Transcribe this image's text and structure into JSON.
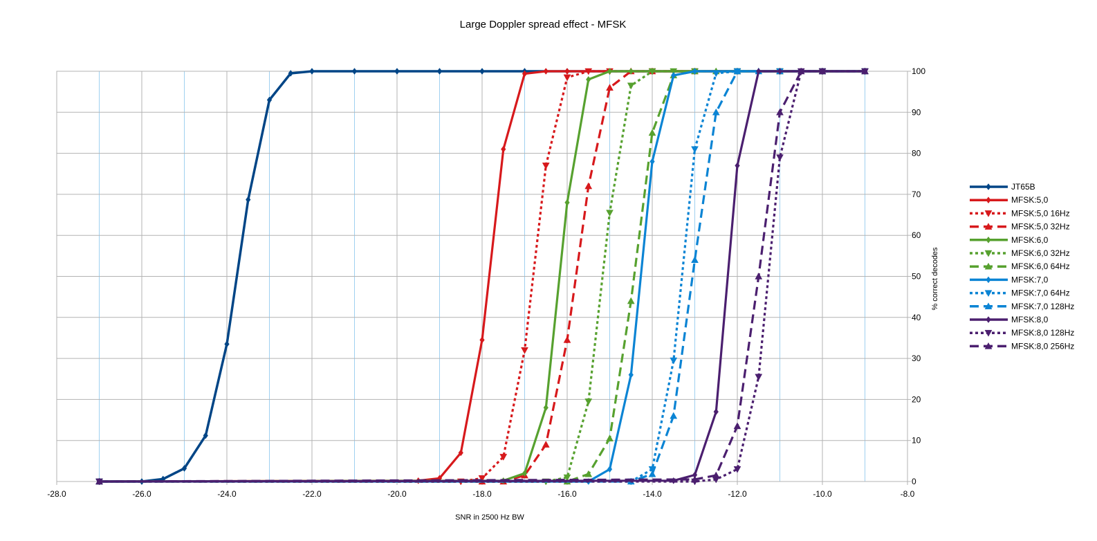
{
  "chart_data": {
    "type": "line",
    "title": "Large Doppler spread effect - MFSK",
    "xlabel": "SNR in 2500 Hz BW",
    "ylabel": "% correct decodes",
    "xlim": [
      -28,
      -8
    ],
    "ylim": [
      0,
      100
    ],
    "x_ticks": [
      "-28.0",
      "-26.0",
      "-24.0",
      "-22.0",
      "-20.0",
      "-18.0",
      "-16.0",
      "-14.0",
      "-12.0",
      "-10.0",
      "-8.0"
    ],
    "y_ticks": [
      "0",
      "10",
      "20",
      "30",
      "40",
      "50",
      "60",
      "70",
      "80",
      "90",
      "100"
    ],
    "y_axis_side": "right",
    "grid": true,
    "legend_position": "right",
    "series": [
      {
        "name": "JT65B",
        "color": "#004586",
        "dash": "solid",
        "marker": "diamond",
        "x": [
          -27,
          -26,
          -25.5,
          -25,
          -24.5,
          -24,
          -23.5,
          -23,
          -22.5,
          -22,
          -21,
          -20,
          -19,
          -18,
          -17,
          -16,
          -15,
          -14,
          -13,
          -12,
          -11,
          -10,
          -9
        ],
        "y": [
          0,
          0,
          0.6,
          3.2,
          11.2,
          33.5,
          68.7,
          93,
          99.5,
          100,
          100,
          100,
          100,
          100,
          100,
          100,
          100,
          100,
          100,
          100,
          100,
          100,
          100
        ]
      },
      {
        "name": "MFSK:5,0",
        "color": "#d7191c",
        "dash": "solid",
        "marker": "diamond",
        "x": [
          -27,
          -19.5,
          -19,
          -18.5,
          -18,
          -17.5,
          -17,
          -16.5,
          -16,
          -15,
          -14,
          -13,
          -12,
          -11,
          -10,
          -9
        ],
        "y": [
          0,
          0.2,
          0.8,
          7,
          34.5,
          81,
          99.4,
          100,
          100,
          100,
          100,
          100,
          100,
          100,
          100,
          100
        ]
      },
      {
        "name": "MFSK:5,0 16Hz",
        "color": "#d7191c",
        "dash": "dot",
        "marker": "tri-down",
        "x": [
          -27,
          -18.5,
          -18,
          -17.5,
          -17,
          -16.5,
          -16,
          -15.5,
          -15,
          -14,
          -13,
          -12,
          -11,
          -10,
          -9
        ],
        "y": [
          0,
          0,
          0.8,
          6,
          32,
          77,
          98.5,
          100,
          100,
          100,
          100,
          100,
          100,
          100,
          100
        ]
      },
      {
        "name": "MFSK:5,0 32Hz",
        "color": "#d7191c",
        "dash": "dash",
        "marker": "tri-up",
        "x": [
          -27,
          -18,
          -17.5,
          -17,
          -16.5,
          -16,
          -15.5,
          -15,
          -14.5,
          -14,
          -13,
          -12,
          -11,
          -10,
          -9
        ],
        "y": [
          0,
          0,
          0,
          1.5,
          9,
          34.5,
          72,
          96,
          100,
          100,
          100,
          100,
          100,
          100,
          100
        ]
      },
      {
        "name": "MFSK:6,0",
        "color": "#57a12f",
        "dash": "solid",
        "marker": "diamond",
        "x": [
          -27,
          -17.5,
          -17,
          -16.5,
          -16,
          -15.5,
          -15,
          -14.5,
          -14,
          -13,
          -12,
          -11,
          -10,
          -9
        ],
        "y": [
          0,
          0.2,
          2,
          18,
          68,
          98,
          100,
          100,
          100,
          100,
          100,
          100,
          100,
          100
        ]
      },
      {
        "name": "MFSK:6,0 32Hz",
        "color": "#57a12f",
        "dash": "dot",
        "marker": "tri-down",
        "x": [
          -27,
          -16.5,
          -16,
          -15.5,
          -15,
          -14.5,
          -14,
          -13.5,
          -13,
          -12,
          -11,
          -10,
          -9
        ],
        "y": [
          0,
          0,
          1,
          19.5,
          65.5,
          96.5,
          100,
          100,
          100,
          100,
          100,
          100,
          100
        ]
      },
      {
        "name": "MFSK:6,0 64Hz",
        "color": "#57a12f",
        "dash": "dash",
        "marker": "tri-up",
        "x": [
          -27,
          -16,
          -15.5,
          -15,
          -14.5,
          -14,
          -13.5,
          -13,
          -12.5,
          -12,
          -11,
          -10,
          -9
        ],
        "y": [
          0,
          0,
          1.8,
          10.5,
          44,
          85,
          99,
          100,
          100,
          100,
          100,
          100,
          100
        ]
      },
      {
        "name": "MFSK:7,0",
        "color": "#0b84d4",
        "dash": "solid",
        "marker": "diamond",
        "x": [
          -27,
          -15.5,
          -15,
          -14.5,
          -14,
          -13.5,
          -13,
          -12,
          -11,
          -10,
          -9
        ],
        "y": [
          0,
          0,
          3,
          26,
          78,
          99,
          100,
          100,
          100,
          100,
          100
        ]
      },
      {
        "name": "MFSK:7,0 64Hz",
        "color": "#0b84d4",
        "dash": "dot",
        "marker": "tri-down",
        "x": [
          -27,
          -14.5,
          -14,
          -13.5,
          -13,
          -12.5,
          -12,
          -11,
          -10,
          -9
        ],
        "y": [
          0,
          0,
          3,
          29.5,
          81,
          99.5,
          100,
          100,
          100,
          100
        ]
      },
      {
        "name": "MFSK:7,0 128Hz",
        "color": "#0b84d4",
        "dash": "dash",
        "marker": "tri-up",
        "x": [
          -27,
          -14.5,
          -14,
          -13.5,
          -13,
          -12.5,
          -12,
          -11.5,
          -11,
          -10,
          -9
        ],
        "y": [
          0,
          0,
          1.8,
          16,
          54,
          90,
          100,
          100,
          100,
          100,
          100
        ]
      },
      {
        "name": "MFSK:8,0",
        "color": "#4b1f6f",
        "dash": "solid",
        "marker": "diamond",
        "x": [
          -27,
          -13.5,
          -13,
          -12.5,
          -12,
          -11.5,
          -11,
          -10.5,
          -10,
          -9
        ],
        "y": [
          0,
          0.2,
          1.6,
          17,
          77,
          100,
          100,
          100,
          100,
          100
        ]
      },
      {
        "name": "MFSK:8,0 128Hz",
        "color": "#4b1f6f",
        "dash": "dot",
        "marker": "tri-down",
        "x": [
          -27,
          -13,
          -12.5,
          -12,
          -11.5,
          -11,
          -10.5,
          -10,
          -9
        ],
        "y": [
          0,
          0,
          0.5,
          3,
          25.5,
          79,
          100,
          100,
          100
        ]
      },
      {
        "name": "MFSK:8,0 256Hz",
        "color": "#4b1f6f",
        "dash": "dash",
        "marker": "tri-up",
        "x": [
          -27,
          -13,
          -12.5,
          -12,
          -11.5,
          -11,
          -10.5,
          -10,
          -9
        ],
        "y": [
          0,
          0.5,
          1.5,
          13.5,
          50,
          90,
          100,
          100,
          100
        ]
      }
    ]
  }
}
